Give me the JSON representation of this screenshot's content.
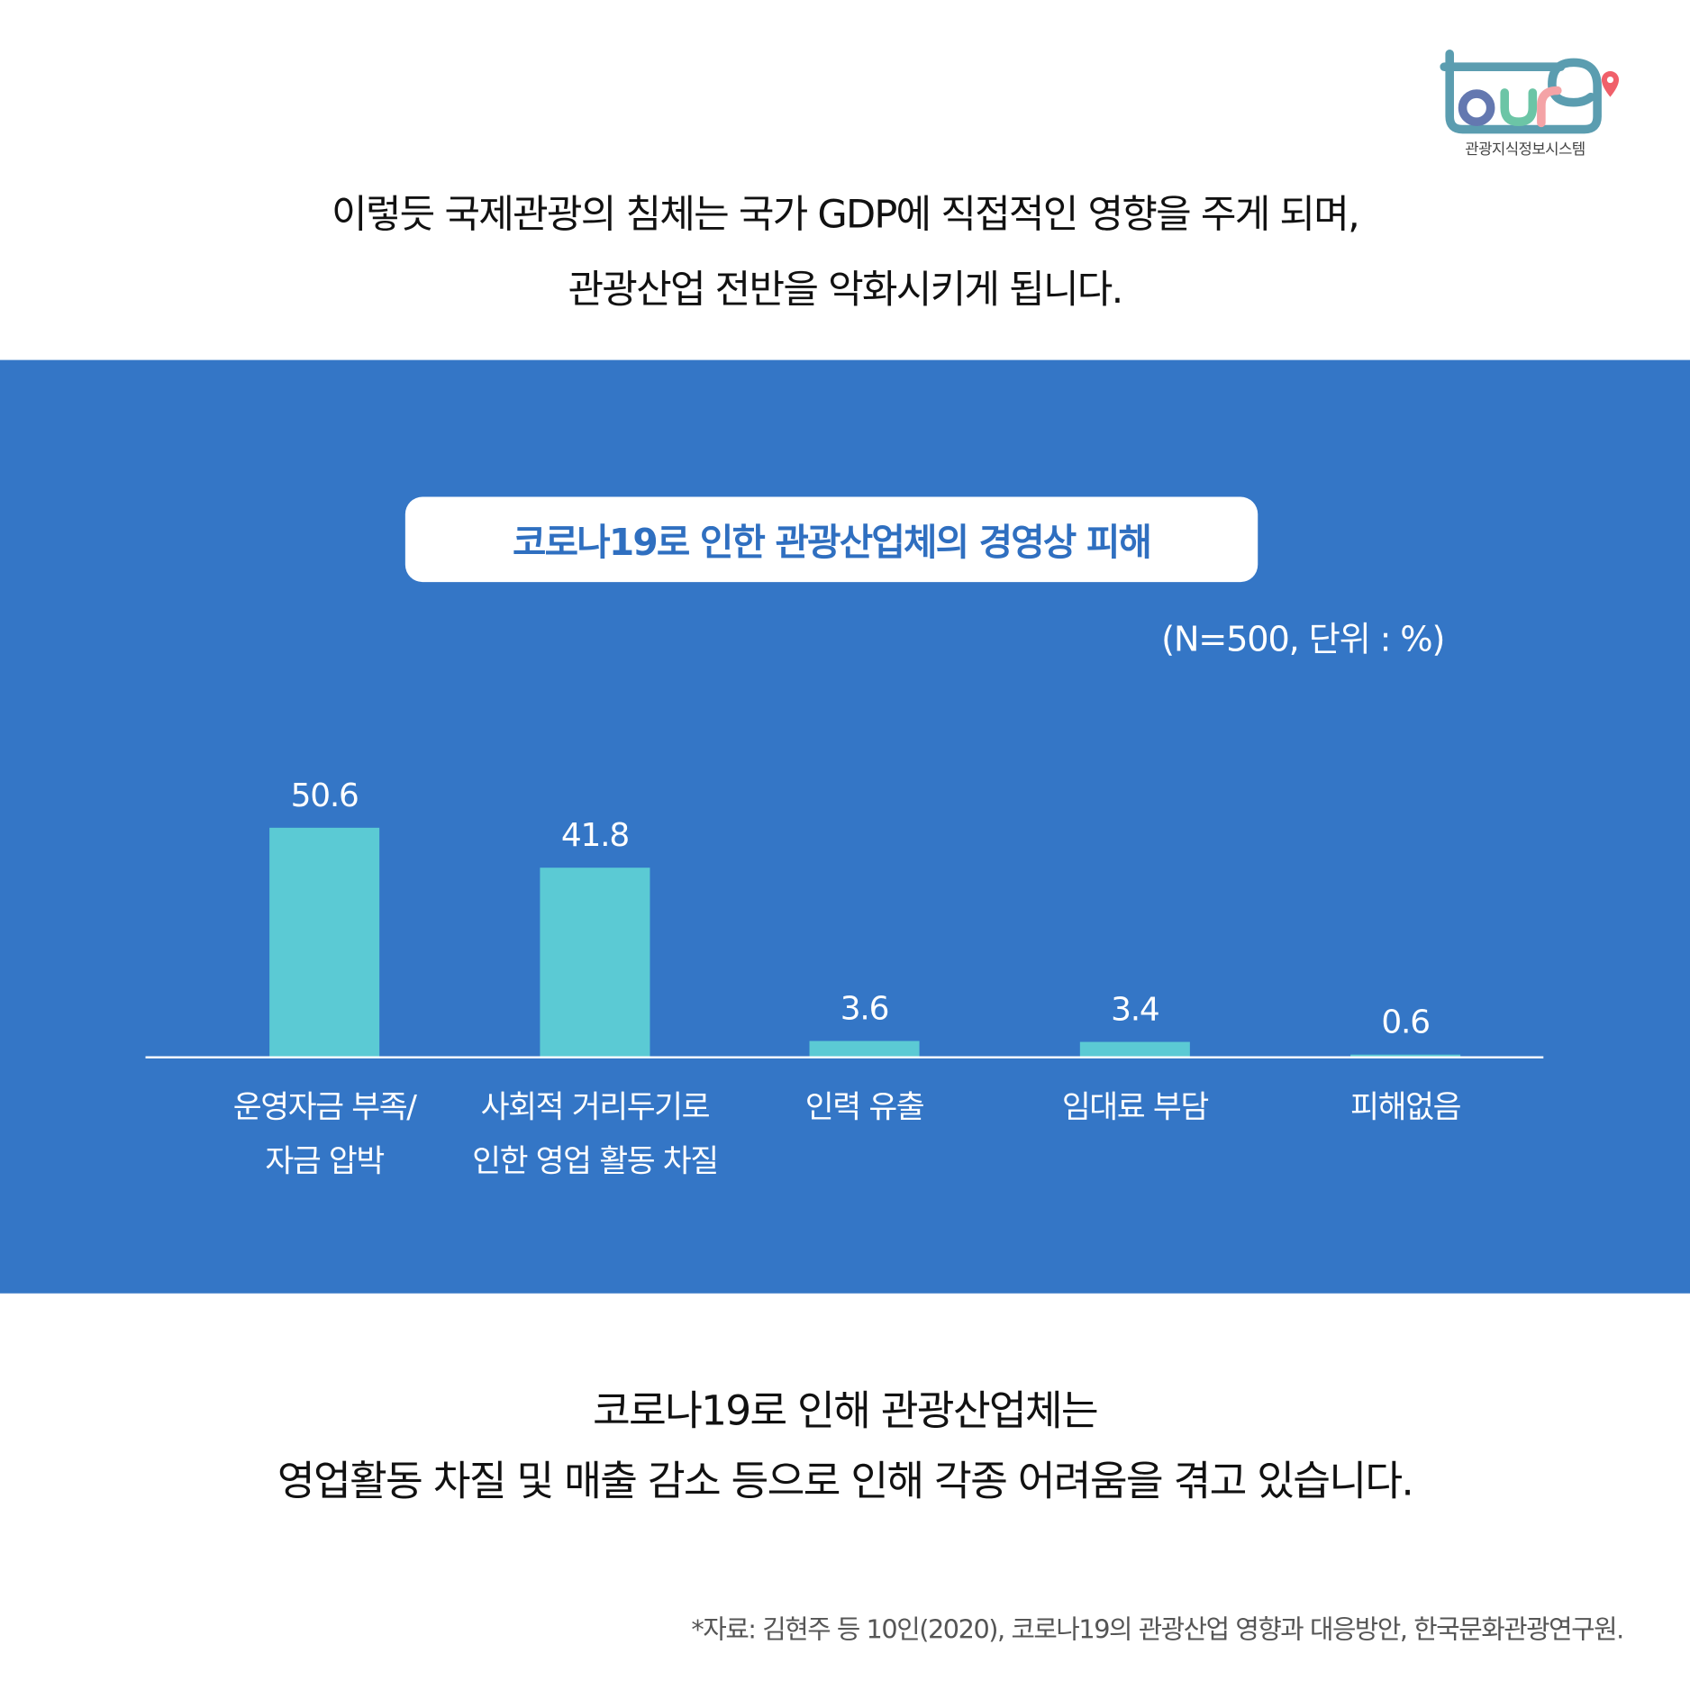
{
  "header": {
    "lines": [
      "이렇듯 국제관광의 침체는 국가 GDP에 직접적인 영향을 주게 되며,",
      "관광산업 전반을 악화시키게 됩니다."
    ]
  },
  "logo": {
    "text": "tour9",
    "caption": "관광지식정보시스템",
    "colors": {
      "frame": "#5b9db0",
      "o": "#6478b0",
      "u": "#6cc5a6",
      "r": "#f4a3a6",
      "pin": "#f0606a"
    }
  },
  "chart_data": {
    "type": "bar",
    "title": "코로나19로 인한 관광산업체의 경영상 피해",
    "note": "(N=500, 단위 : %)",
    "categories": [
      [
        "운영자금 부족/",
        "자금 압박"
      ],
      [
        "사회적 거리두기로",
        "인한 영업 활동 차질"
      ],
      [
        "인력 유출"
      ],
      [
        "임대료 부담"
      ],
      [
        "피해없음"
      ]
    ],
    "values": [
      50.6,
      41.8,
      3.6,
      3.4,
      0.6
    ],
    "value_labels": [
      "50.6",
      "41.8",
      "3.6",
      "3.4",
      "0.6"
    ],
    "ylim": [
      0,
      55
    ],
    "grid": false,
    "colors": {
      "bar": "#5bcad4",
      "background": "#3476c6",
      "axis": "#ffffff"
    }
  },
  "footer": {
    "lines": [
      "코로나19로 인해 관광산업체는",
      "영업활동 차질 및 매출 감소 등으로 인해 각종 어려움을 겪고 있습니다."
    ],
    "source": "*자료: 김현주 등 10인(2020), 코로나19의 관광산업 영향과 대응방안, 한국문화관광연구원."
  }
}
